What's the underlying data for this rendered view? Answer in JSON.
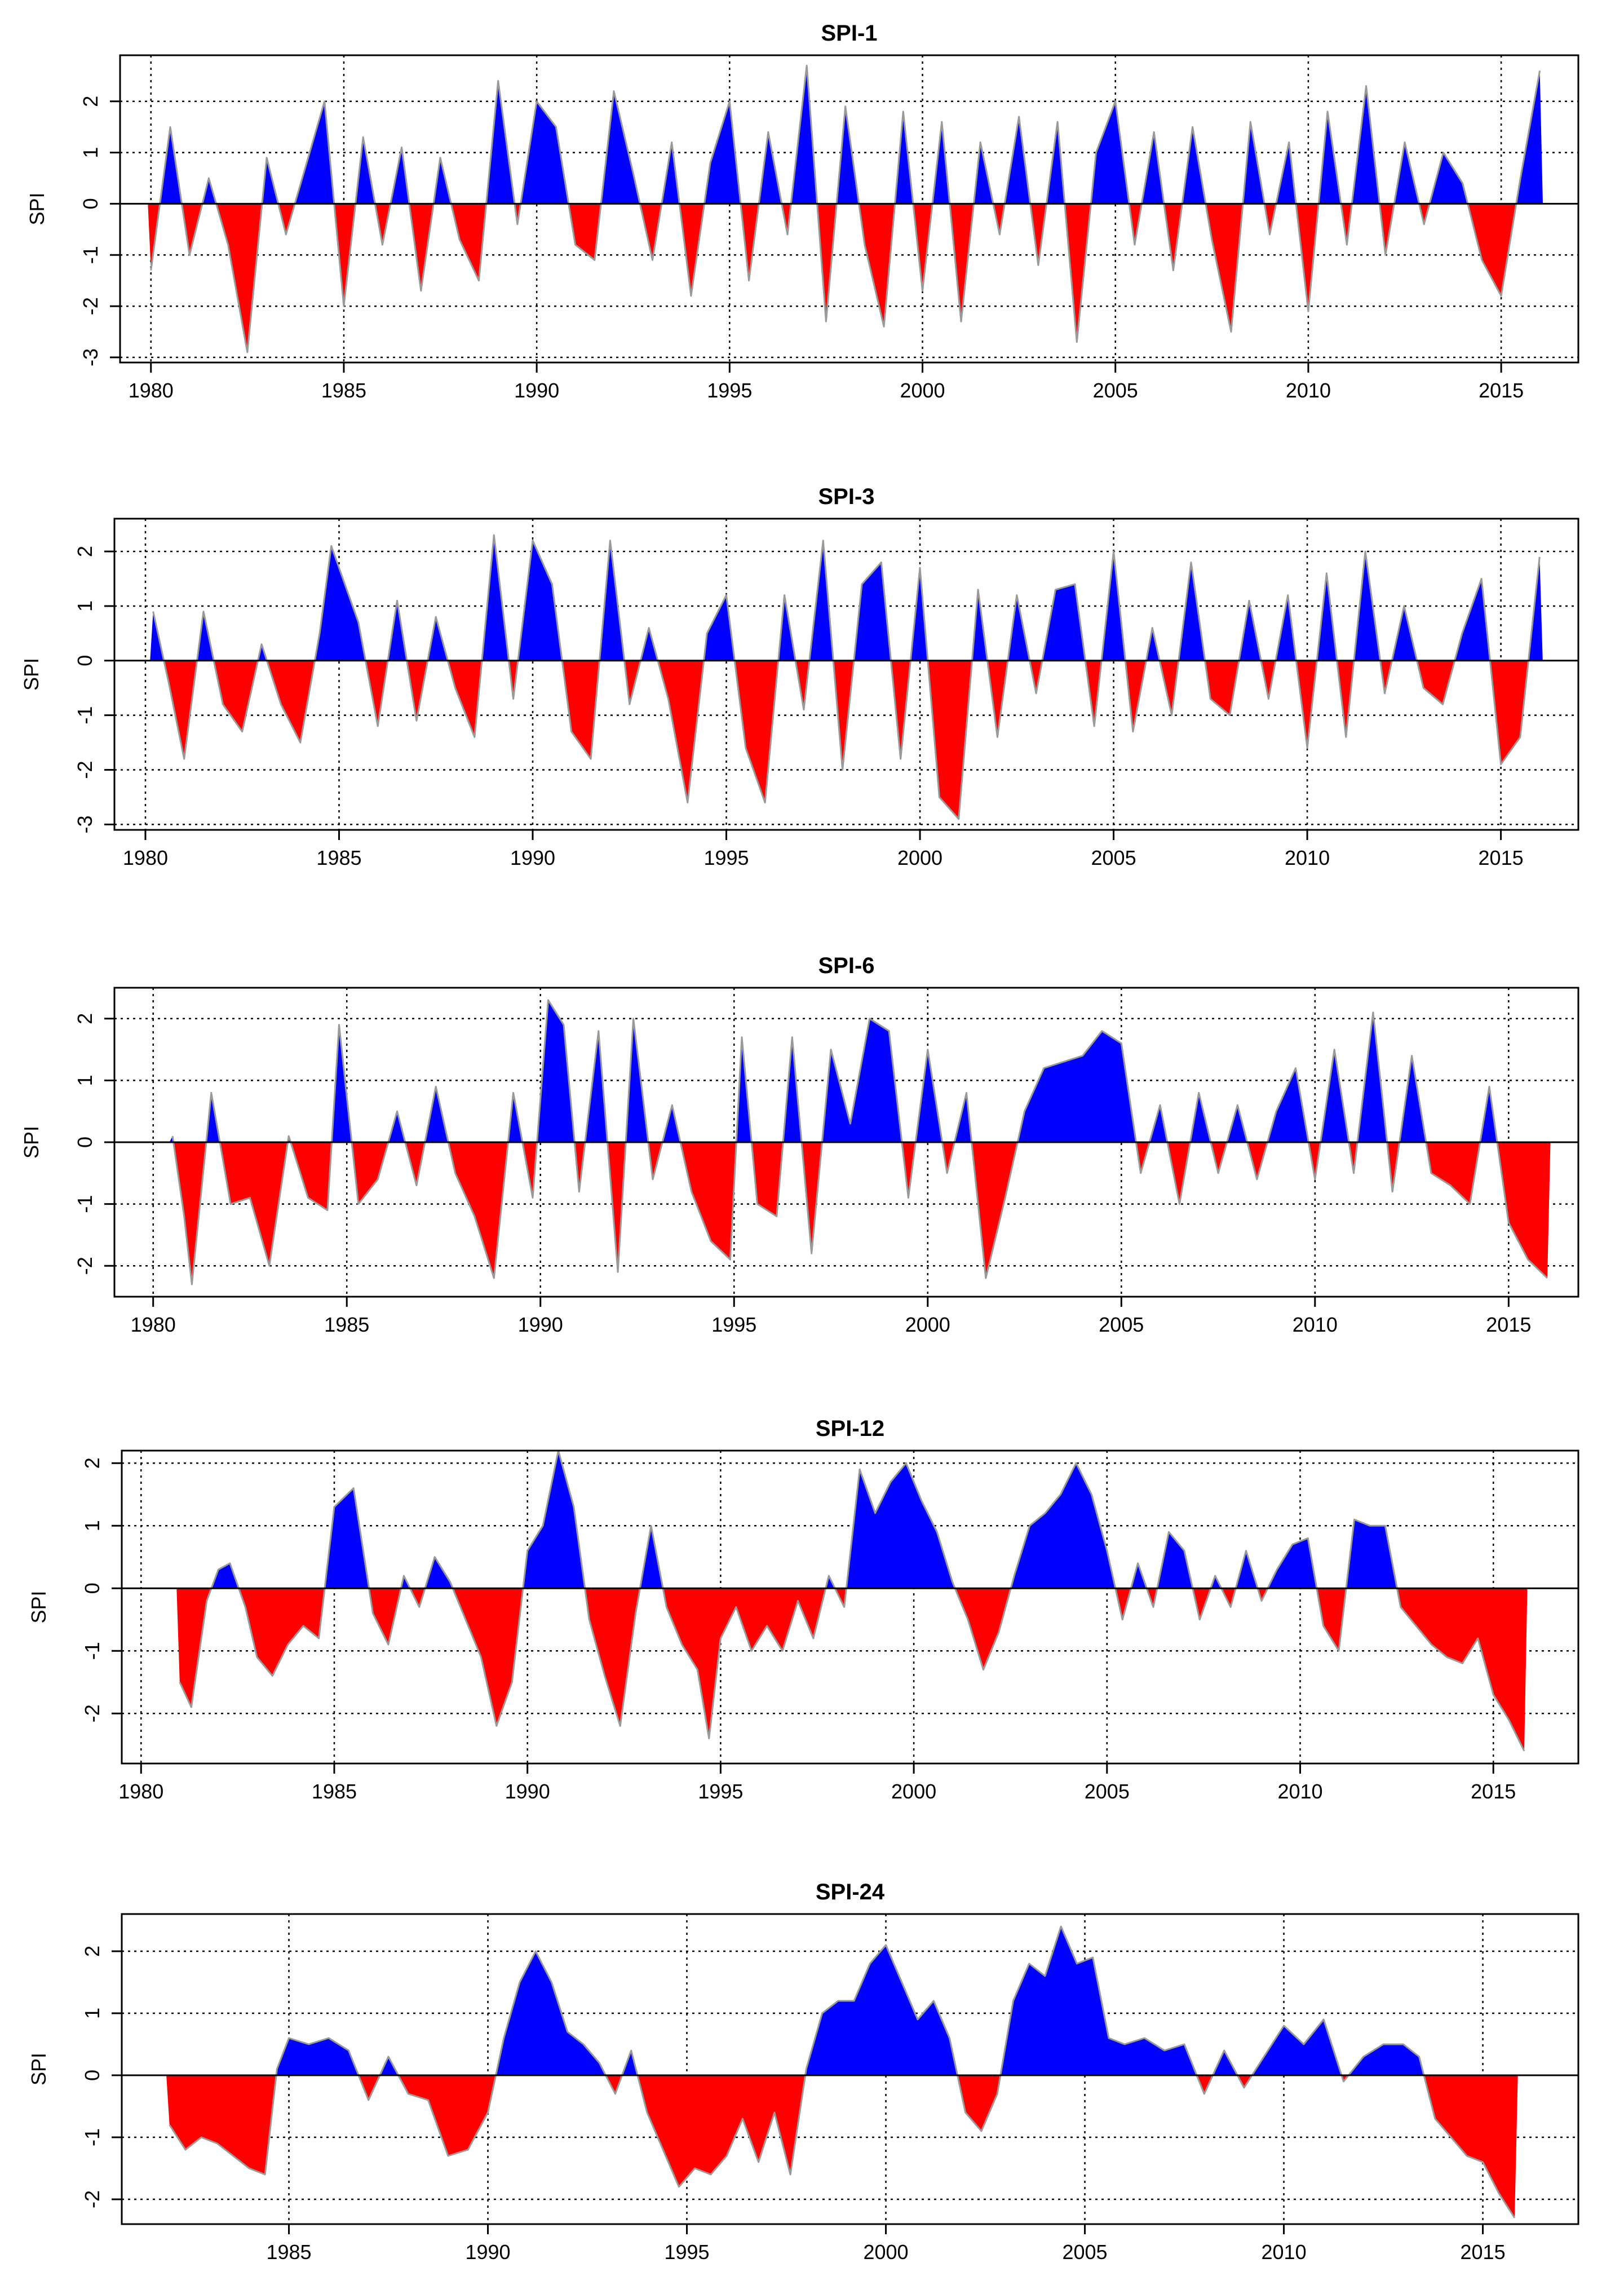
{
  "figure_colors": {
    "positive": "#0000ff",
    "negative": "#ff0000",
    "outline": "#9a9a9a",
    "grid": "#000000"
  },
  "chart_data": [
    {
      "type": "area",
      "title": "SPI-1",
      "xlabel": "",
      "ylabel": "SPI",
      "xlim": [
        1979.2,
        2017.0
      ],
      "ylim": [
        -3.1,
        2.9
      ],
      "x_ticks": [
        1980,
        1985,
        1990,
        1995,
        2000,
        2005,
        2010,
        2015
      ],
      "x_tick_labels": [
        "1980",
        "1985",
        "1990",
        "1995",
        "2000",
        "2005",
        "2010",
        "2015"
      ],
      "y_ticks": [
        -3,
        -2,
        -1,
        0,
        1,
        2
      ],
      "y_tick_labels": [
        "-3",
        "-2",
        "-1",
        "0",
        "1",
        "2"
      ],
      "grid": true,
      "x": [
        1980.0,
        1980.5,
        1981.0,
        1981.5,
        1982.0,
        1982.5,
        1983.0,
        1983.5,
        1984.0,
        1984.5,
        1985.0,
        1985.5,
        1986.0,
        1986.5,
        1987.0,
        1987.5,
        1988.0,
        1988.5,
        1989.0,
        1989.5,
        1990.0,
        1990.5,
        1991.0,
        1991.5,
        1992.0,
        1992.5,
        1993.0,
        1993.5,
        1994.0,
        1994.5,
        1995.0,
        1995.5,
        1996.0,
        1996.5,
        1997.0,
        1997.5,
        1998.0,
        1998.5,
        1999.0,
        1999.5,
        2000.0,
        2000.5,
        2001.0,
        2001.5,
        2002.0,
        2002.5,
        2003.0,
        2003.5,
        2004.0,
        2004.5,
        2005.0,
        2005.5,
        2006.0,
        2006.5,
        2007.0,
        2007.5,
        2008.0,
        2008.5,
        2009.0,
        2009.5,
        2010.0,
        2010.5,
        2011.0,
        2011.5,
        2012.0,
        2012.5,
        2013.0,
        2013.5,
        2014.0,
        2014.5,
        2015.0,
        2015.5,
        2016.0
      ],
      "values": [
        -1.3,
        1.5,
        -1.0,
        0.5,
        -0.8,
        -2.9,
        0.9,
        -0.6,
        0.7,
        2.0,
        -2.0,
        1.3,
        -0.8,
        1.1,
        -1.7,
        0.9,
        -0.7,
        -1.5,
        2.4,
        -0.4,
        2.0,
        1.5,
        -0.8,
        -1.1,
        2.2,
        0.6,
        -1.1,
        1.2,
        -1.8,
        0.8,
        2.0,
        -1.5,
        1.4,
        -0.6,
        2.7,
        -2.3,
        1.9,
        -0.8,
        -2.4,
        1.8,
        -1.7,
        1.6,
        -2.3,
        1.2,
        -0.6,
        1.7,
        -1.2,
        1.6,
        -2.7,
        1.0,
        2.0,
        -0.8,
        1.4,
        -1.3,
        1.5,
        -0.7,
        -2.5,
        1.6,
        -0.6,
        1.2,
        -2.1,
        1.8,
        -0.8,
        2.3,
        -1.0,
        1.2,
        -0.4,
        1.0,
        0.4,
        -1.1,
        -1.8,
        0.5,
        2.6
      ]
    },
    {
      "type": "area",
      "title": "SPI-3",
      "xlabel": "",
      "ylabel": "SPI",
      "xlim": [
        1979.2,
        2017.0
      ],
      "ylim": [
        -3.1,
        2.6
      ],
      "x_ticks": [
        1980,
        1985,
        1990,
        1995,
        2000,
        2005,
        2010,
        2015
      ],
      "x_tick_labels": [
        "1980",
        "1985",
        "1990",
        "1995",
        "2000",
        "2005",
        "2010",
        "2015"
      ],
      "y_ticks": [
        -3,
        -2,
        -1,
        0,
        1,
        2
      ],
      "y_tick_labels": [
        "-3",
        "-2",
        "-1",
        "0",
        "1",
        "2"
      ],
      "grid": true,
      "x": [
        1980.2,
        1980.6,
        1981.0,
        1981.5,
        1982.0,
        1982.5,
        1983.0,
        1983.5,
        1984.0,
        1984.5,
        1984.8,
        1985.5,
        1986.0,
        1986.5,
        1987.0,
        1987.5,
        1988.0,
        1988.5,
        1989.0,
        1989.5,
        1990.0,
        1990.5,
        1991.0,
        1991.5,
        1992.0,
        1992.5,
        1993.0,
        1993.5,
        1994.0,
        1994.5,
        1995.0,
        1995.5,
        1996.0,
        1996.5,
        1997.0,
        1997.5,
        1998.0,
        1998.5,
        1999.0,
        1999.5,
        2000.0,
        2000.5,
        2001.0,
        2001.5,
        2002.0,
        2002.5,
        2003.0,
        2003.5,
        2004.0,
        2004.5,
        2005.0,
        2005.5,
        2006.0,
        2006.5,
        2007.0,
        2007.5,
        2008.0,
        2008.5,
        2009.0,
        2009.5,
        2010.0,
        2010.5,
        2011.0,
        2011.5,
        2012.0,
        2012.5,
        2013.0,
        2013.5,
        2014.0,
        2014.5,
        2015.0,
        2015.5,
        2016.0
      ],
      "values": [
        0.9,
        -0.4,
        -1.8,
        0.9,
        -0.8,
        -1.3,
        0.3,
        -0.8,
        -1.5,
        0.5,
        2.1,
        0.7,
        -1.2,
        1.1,
        -1.1,
        0.8,
        -0.5,
        -1.4,
        2.3,
        -0.7,
        2.2,
        1.4,
        -1.3,
        -1.8,
        2.2,
        -0.8,
        0.6,
        -0.7,
        -2.6,
        0.5,
        1.2,
        -1.6,
        -2.6,
        1.2,
        -0.9,
        2.2,
        -2.0,
        1.4,
        1.8,
        -1.8,
        1.7,
        -2.5,
        -2.9,
        1.3,
        -1.4,
        1.2,
        -0.6,
        1.3,
        1.4,
        -1.2,
        2.0,
        -1.3,
        0.6,
        -1.0,
        1.8,
        -0.7,
        -1.0,
        1.1,
        -0.7,
        1.2,
        -1.6,
        1.6,
        -1.4,
        2.0,
        -0.6,
        1.0,
        -0.5,
        -0.8,
        0.5,
        1.5,
        -1.9,
        -1.4,
        1.9
      ]
    },
    {
      "type": "area",
      "title": "SPI-6",
      "xlabel": "",
      "ylabel": "SPI",
      "xlim": [
        1979.0,
        2016.8
      ],
      "ylim": [
        -2.5,
        2.5
      ],
      "x_ticks": [
        1980,
        1985,
        1990,
        1995,
        2000,
        2005,
        2010,
        2015
      ],
      "x_tick_labels": [
        "1980",
        "1985",
        "1990",
        "1995",
        "2000",
        "2005",
        "2010",
        "2015"
      ],
      "y_ticks": [
        -2,
        -1,
        0,
        1,
        2
      ],
      "y_tick_labels": [
        "-2",
        "-1",
        "0",
        "1",
        "2"
      ],
      "grid": true,
      "x": [
        1980.5,
        1980.8,
        1981.0,
        1981.5,
        1982.0,
        1982.5,
        1983.0,
        1983.5,
        1984.0,
        1984.5,
        1984.8,
        1985.3,
        1985.8,
        1986.3,
        1986.8,
        1987.3,
        1987.8,
        1988.3,
        1988.8,
        1989.3,
        1989.8,
        1990.2,
        1990.6,
        1991.0,
        1991.5,
        1992.0,
        1992.4,
        1992.9,
        1993.4,
        1993.9,
        1994.4,
        1994.9,
        1995.2,
        1995.6,
        1996.1,
        1996.5,
        1997.0,
        1997.5,
        1998.0,
        1998.5,
        1999.0,
        1999.5,
        2000.0,
        2000.5,
        2001.0,
        2001.5,
        2002.0,
        2002.5,
        2003.0,
        2003.5,
        2004.0,
        2004.5,
        2005.0,
        2005.5,
        2006.0,
        2006.5,
        2007.0,
        2007.5,
        2008.0,
        2008.5,
        2009.0,
        2009.5,
        2010.0,
        2010.5,
        2011.0,
        2011.5,
        2012.0,
        2012.5,
        2013.0,
        2013.5,
        2014.0,
        2014.5,
        2015.0,
        2015.5,
        2016.0
      ],
      "values": [
        0.1,
        -1.2,
        -2.3,
        0.8,
        -1.0,
        -0.9,
        -2.0,
        0.1,
        -0.9,
        -1.1,
        1.9,
        -1.0,
        -0.6,
        0.5,
        -0.7,
        0.9,
        -0.5,
        -1.2,
        -2.2,
        0.8,
        -0.9,
        2.3,
        1.9,
        -0.8,
        1.8,
        -2.1,
        2.0,
        -0.6,
        0.6,
        -0.8,
        -1.6,
        -1.9,
        1.7,
        -1.0,
        -1.2,
        1.7,
        -1.8,
        1.5,
        0.3,
        2.0,
        1.8,
        -0.9,
        1.5,
        -0.5,
        0.8,
        -2.2,
        -0.9,
        0.5,
        1.2,
        1.3,
        1.4,
        1.8,
        1.6,
        -0.5,
        0.6,
        -1.0,
        0.8,
        -0.5,
        0.6,
        -0.6,
        0.5,
        1.2,
        -0.6,
        1.5,
        -0.5,
        2.1,
        -0.8,
        1.4,
        -0.5,
        -0.7,
        -1.0,
        0.9,
        -1.3,
        -1.9,
        -2.2
      ]
    },
    {
      "type": "area",
      "title": "SPI-12",
      "xlabel": "",
      "ylabel": "SPI",
      "xlim": [
        1979.5,
        2017.2
      ],
      "ylim": [
        -2.8,
        2.2
      ],
      "x_ticks": [
        1980,
        1985,
        1990,
        1995,
        2000,
        2005,
        2010,
        2015
      ],
      "x_tick_labels": [
        "1980",
        "1985",
        "1990",
        "1995",
        "2000",
        "2005",
        "2010",
        "2015"
      ],
      "y_ticks": [
        -2,
        -1,
        0,
        1,
        2
      ],
      "y_tick_labels": [
        "-2",
        "-1",
        "0",
        "1",
        "2"
      ],
      "grid": true,
      "x": [
        1981.0,
        1981.3,
        1981.7,
        1982.0,
        1982.3,
        1982.7,
        1983.0,
        1983.4,
        1983.8,
        1984.2,
        1984.6,
        1985.0,
        1985.5,
        1986.0,
        1986.4,
        1986.8,
        1987.2,
        1987.6,
        1988.0,
        1988.4,
        1988.8,
        1989.2,
        1989.6,
        1990.0,
        1990.4,
        1990.8,
        1991.2,
        1991.6,
        1992.0,
        1992.4,
        1992.8,
        1993.2,
        1993.6,
        1994.0,
        1994.4,
        1994.7,
        1995.0,
        1995.4,
        1995.8,
        1996.2,
        1996.6,
        1997.0,
        1997.4,
        1997.8,
        1998.2,
        1998.6,
        1999.0,
        1999.4,
        1999.8,
        2000.2,
        2000.6,
        2001.0,
        2001.4,
        2001.8,
        2002.2,
        2002.6,
        2003.0,
        2003.4,
        2003.8,
        2004.2,
        2004.6,
        2005.0,
        2005.4,
        2005.8,
        2006.2,
        2006.6,
        2007.0,
        2007.4,
        2007.8,
        2008.2,
        2008.6,
        2009.0,
        2009.4,
        2009.8,
        2010.2,
        2010.6,
        2011.0,
        2011.4,
        2011.8,
        2012.2,
        2012.6,
        2013.0,
        2013.4,
        2013.8,
        2014.2,
        2014.6,
        2015.0,
        2015.4,
        2015.8
      ],
      "values": [
        -1.5,
        -1.9,
        -0.2,
        0.3,
        0.4,
        -0.3,
        -1.1,
        -1.4,
        -0.9,
        -0.6,
        -0.8,
        1.3,
        1.6,
        -0.4,
        -0.9,
        0.2,
        -0.3,
        0.5,
        0.1,
        -0.5,
        -1.1,
        -2.2,
        -1.5,
        0.6,
        1.0,
        2.2,
        1.3,
        -0.5,
        -1.4,
        -2.2,
        -0.4,
        1.0,
        -0.3,
        -0.9,
        -1.3,
        -2.4,
        -0.8,
        -0.3,
        -1.0,
        -0.6,
        -1.0,
        -0.2,
        -0.8,
        0.2,
        -0.3,
        1.9,
        1.2,
        1.7,
        2.0,
        1.4,
        0.9,
        0.1,
        -0.5,
        -1.3,
        -0.7,
        0.2,
        1.0,
        1.2,
        1.5,
        2.0,
        1.5,
        0.6,
        -0.5,
        0.4,
        -0.3,
        0.9,
        0.6,
        -0.5,
        0.2,
        -0.3,
        0.6,
        -0.2,
        0.3,
        0.7,
        0.8,
        -0.6,
        -1.0,
        1.1,
        1.0,
        1.0,
        -0.3,
        -0.6,
        -0.9,
        -1.1,
        -1.2,
        -0.8,
        -1.7,
        -2.1,
        -2.6
      ]
    },
    {
      "type": "area",
      "title": "SPI-24",
      "xlabel": "",
      "ylabel": "SPI",
      "xlim": [
        1980.8,
        2017.4
      ],
      "ylim": [
        -2.4,
        2.6
      ],
      "x_ticks": [
        1985,
        1990,
        1995,
        2000,
        2005,
        2010,
        2015
      ],
      "x_tick_labels": [
        "1985",
        "1990",
        "1995",
        "2000",
        "2005",
        "2010",
        "2015"
      ],
      "y_ticks": [
        -2,
        -1,
        0,
        1,
        2
      ],
      "y_tick_labels": [
        "-2",
        "-1",
        "0",
        "1",
        "2"
      ],
      "grid": true,
      "x": [
        1982.0,
        1982.4,
        1982.8,
        1983.2,
        1983.6,
        1984.0,
        1984.4,
        1984.7,
        1985.0,
        1985.5,
        1986.0,
        1986.5,
        1987.0,
        1987.5,
        1988.0,
        1988.5,
        1989.0,
        1989.5,
        1990.0,
        1990.4,
        1990.8,
        1991.2,
        1991.6,
        1992.0,
        1992.4,
        1992.8,
        1993.2,
        1993.6,
        1994.0,
        1994.4,
        1994.8,
        1995.2,
        1995.6,
        1996.0,
        1996.4,
        1996.8,
        1997.2,
        1997.6,
        1998.0,
        1998.4,
        1998.8,
        1999.2,
        1999.6,
        2000.0,
        2000.4,
        2000.8,
        2001.2,
        2001.6,
        2002.0,
        2002.4,
        2002.8,
        2003.2,
        2003.6,
        2004.0,
        2004.4,
        2004.8,
        2005.2,
        2005.6,
        2006.0,
        2006.5,
        2007.0,
        2007.5,
        2008.0,
        2008.5,
        2009.0,
        2009.5,
        2010.0,
        2010.5,
        2011.0,
        2011.5,
        2012.0,
        2012.5,
        2013.0,
        2013.4,
        2013.8,
        2014.2,
        2014.6,
        2015.0,
        2015.4,
        2015.8
      ],
      "values": [
        -0.8,
        -1.2,
        -1.0,
        -1.1,
        -1.3,
        -1.5,
        -1.6,
        0.1,
        0.6,
        0.5,
        0.6,
        0.4,
        -0.4,
        0.3,
        -0.3,
        -0.4,
        -1.3,
        -1.2,
        -0.6,
        0.6,
        1.5,
        2.0,
        1.5,
        0.7,
        0.5,
        0.2,
        -0.3,
        0.4,
        -0.6,
        -1.2,
        -1.8,
        -1.5,
        -1.6,
        -1.3,
        -0.7,
        -1.4,
        -0.6,
        -1.6,
        0.1,
        1.0,
        1.2,
        1.2,
        1.8,
        2.1,
        1.5,
        0.9,
        1.2,
        0.6,
        -0.6,
        -0.9,
        -0.3,
        1.2,
        1.8,
        1.6,
        2.4,
        1.8,
        1.9,
        0.6,
        0.5,
        0.6,
        0.4,
        0.5,
        -0.3,
        0.4,
        -0.2,
        0.3,
        0.8,
        0.5,
        0.9,
        -0.1,
        0.3,
        0.5,
        0.5,
        0.3,
        -0.7,
        -1.0,
        -1.3,
        -1.4,
        -1.9,
        -2.3
      ]
    }
  ]
}
